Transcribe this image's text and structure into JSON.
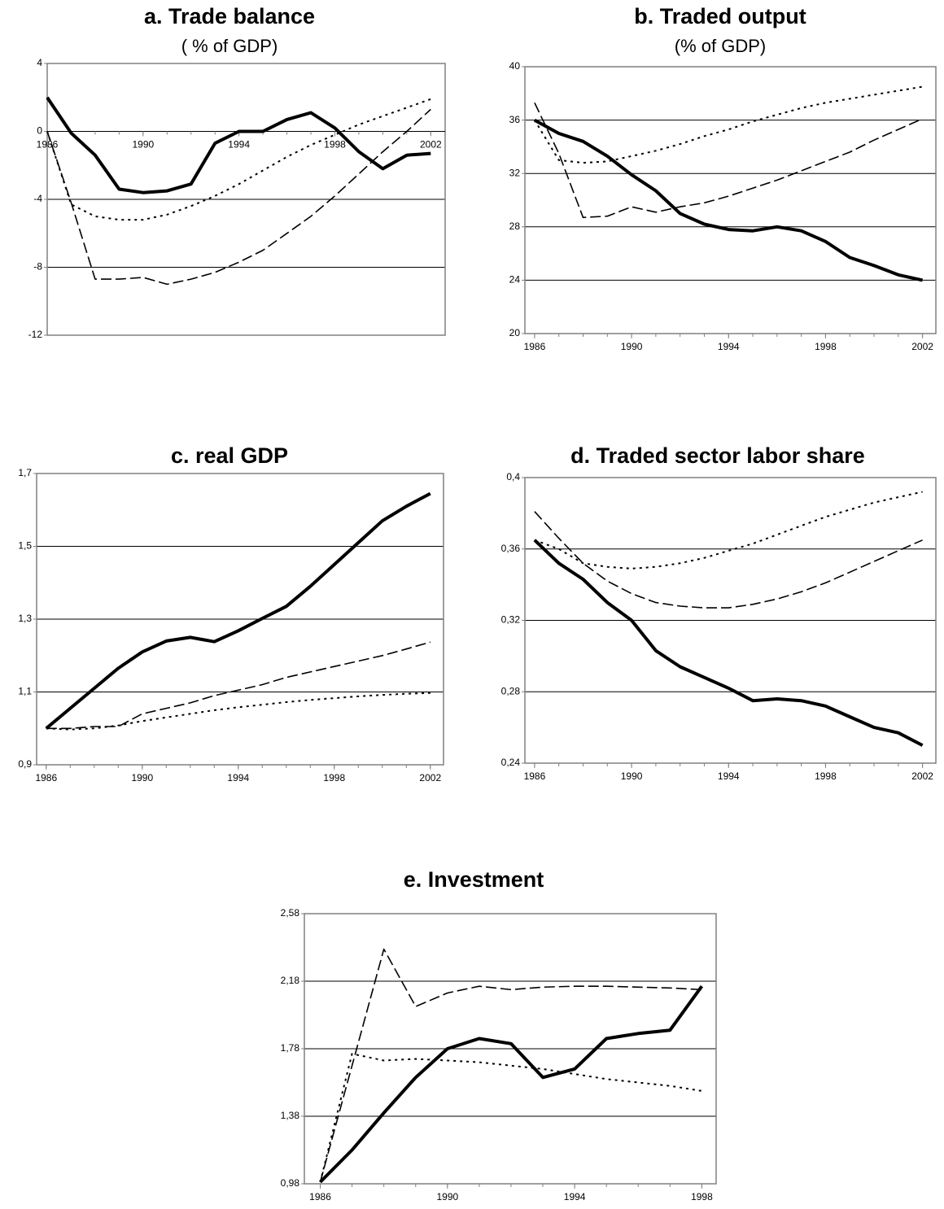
{
  "chart_data": [
    {
      "type": "line",
      "title": "a. Trade balance",
      "subtitle": "( % of GDP)",
      "x": [
        1986,
        1987,
        1988,
        1989,
        1990,
        1991,
        1992,
        1993,
        1994,
        1995,
        1996,
        1997,
        1998,
        1999,
        2000,
        2001,
        2002
      ],
      "xlim": [
        1986,
        2002.6
      ],
      "xticks": [
        1986,
        1990,
        1994,
        1998,
        2002
      ],
      "x_axis_crossing": 0,
      "ylim": [
        -12,
        4
      ],
      "yticks": [
        4,
        0,
        -4,
        -8,
        -12
      ],
      "grid": true,
      "series": [
        {
          "color": "#000000",
          "style": "solid",
          "values": [
            2,
            -0.1,
            -1.4,
            -3.4,
            -3.6,
            -3.5,
            -3.1,
            -0.7,
            0,
            0,
            0.7,
            1.1,
            0.2,
            -1.2,
            -2.2,
            -1.4,
            -1.3
          ]
        },
        {
          "color": "#000000",
          "style": "dashed",
          "values": [
            0,
            -4.2,
            -8.7,
            -8.7,
            -8.6,
            -9.0,
            -8.7,
            -8.3,
            -7.7,
            -7.0,
            -6.0,
            -5.0,
            -3.8,
            -2.5,
            -1.2,
            0,
            1.3
          ]
        },
        {
          "color": "#000000",
          "style": "dotted",
          "values": [
            0,
            -4.3,
            -5.0,
            -5.2,
            -5.2,
            -4.9,
            -4.4,
            -3.8,
            -3.1,
            -2.3,
            -1.5,
            -0.8,
            -0.2,
            0.4,
            0.9,
            1.4,
            1.9
          ]
        }
      ]
    },
    {
      "type": "line",
      "title": "b. Traded output",
      "subtitle": "(% of GDP)",
      "x": [
        1986,
        1987,
        1988,
        1989,
        1990,
        1991,
        1992,
        1993,
        1994,
        1995,
        1996,
        1997,
        1998,
        1999,
        2000,
        2001,
        2002
      ],
      "xlim": [
        1985.6,
        2002.55
      ],
      "xticks": [
        1986,
        1990,
        1994,
        1998,
        2002
      ],
      "ylim": [
        20,
        40
      ],
      "yticks": [
        40,
        36,
        32,
        28,
        24,
        20
      ],
      "grid": true,
      "series": [
        {
          "color": "#000000",
          "style": "solid",
          "values": [
            36,
            35,
            34.4,
            33.3,
            31.9,
            30.7,
            29.0,
            28.2,
            27.8,
            27.7,
            28.0,
            27.7,
            26.9,
            25.7,
            25.1,
            24.4,
            24.0
          ]
        },
        {
          "color": "#000000",
          "style": "dashed",
          "values": [
            37.3,
            33.5,
            28.7,
            28.8,
            29.5,
            29.1,
            29.5,
            29.8,
            30.3,
            30.9,
            31.5,
            32.2,
            32.9,
            33.6,
            34.5,
            35.3,
            36.1
          ]
        },
        {
          "color": "#000000",
          "style": "dotted",
          "values": [
            36,
            33,
            32.8,
            32.9,
            33.3,
            33.7,
            34.2,
            34.8,
            35.3,
            35.9,
            36.4,
            36.9,
            37.3,
            37.6,
            37.9,
            38.2,
            38.5
          ]
        }
      ]
    },
    {
      "type": "line",
      "title": "c. real GDP",
      "x": [
        1986,
        1987,
        1988,
        1989,
        1990,
        1991,
        1992,
        1993,
        1994,
        1995,
        1996,
        1997,
        1998,
        1999,
        2000,
        2001,
        2002
      ],
      "xlim": [
        1985.6,
        2002.55
      ],
      "xticks": [
        1986,
        1990,
        1994,
        1998,
        2002
      ],
      "ylim": [
        0.9,
        1.7
      ],
      "yticks": [
        {
          "value": 1.7,
          "label": "1,7"
        },
        {
          "value": 1.5,
          "label": "1,5"
        },
        {
          "value": 1.3,
          "label": "1,3"
        },
        {
          "value": 1.1,
          "label": "1,1"
        },
        {
          "value": 0.9,
          "label": "0,9"
        }
      ],
      "grid": true,
      "series": [
        {
          "color": "#000000",
          "style": "solid",
          "values": [
            1.0,
            1.055,
            1.11,
            1.165,
            1.21,
            1.24,
            1.25,
            1.238,
            1.268,
            1.302,
            1.335,
            1.39,
            1.45,
            1.51,
            1.57,
            1.61,
            1.645
          ]
        },
        {
          "color": "#000000",
          "style": "dashed",
          "values": [
            1.0,
            1.0,
            1.005,
            1.005,
            1.04,
            1.055,
            1.07,
            1.09,
            1.105,
            1.12,
            1.14,
            1.155,
            1.17,
            1.185,
            1.2,
            1.218,
            1.237
          ]
        },
        {
          "color": "#000000",
          "style": "dotted",
          "values": [
            1.0,
            0.997,
            1.0,
            1.008,
            1.02,
            1.03,
            1.04,
            1.05,
            1.058,
            1.065,
            1.072,
            1.078,
            1.083,
            1.088,
            1.092,
            1.095,
            1.097
          ]
        }
      ]
    },
    {
      "type": "line",
      "title": "d. Traded sector labor share",
      "x": [
        1986,
        1987,
        1988,
        1989,
        1990,
        1991,
        1992,
        1993,
        1994,
        1995,
        1996,
        1997,
        1998,
        1999,
        2000,
        2001,
        2002
      ],
      "xlim": [
        1985.6,
        2002.55
      ],
      "xticks": [
        1986,
        1990,
        1994,
        1998,
        2002
      ],
      "ylim": [
        0.24,
        0.4
      ],
      "yticks": [
        {
          "value": 0.4,
          "label": "0,4"
        },
        {
          "value": 0.36,
          "label": "0,36"
        },
        {
          "value": 0.32,
          "label": "0,32"
        },
        {
          "value": 0.28,
          "label": "0,28"
        },
        {
          "value": 0.24,
          "label": "0,24"
        }
      ],
      "grid": true,
      "series": [
        {
          "color": "#000000",
          "style": "solid",
          "values": [
            0.365,
            0.352,
            0.343,
            0.33,
            0.32,
            0.303,
            0.294,
            0.288,
            0.282,
            0.275,
            0.276,
            0.275,
            0.272,
            0.266,
            0.26,
            0.257,
            0.25
          ]
        },
        {
          "color": "#000000",
          "style": "dashed",
          "values": [
            0.381,
            0.366,
            0.352,
            0.342,
            0.335,
            0.33,
            0.328,
            0.327,
            0.327,
            0.329,
            0.332,
            0.336,
            0.341,
            0.347,
            0.353,
            0.359,
            0.365
          ]
        },
        {
          "color": "#000000",
          "style": "dotted",
          "values": [
            0.365,
            0.36,
            0.352,
            0.35,
            0.349,
            0.35,
            0.352,
            0.355,
            0.359,
            0.363,
            0.368,
            0.373,
            0.378,
            0.382,
            0.386,
            0.389,
            0.392
          ]
        }
      ]
    },
    {
      "type": "line",
      "title": "e. Investment",
      "x": [
        1986,
        1987,
        1988,
        1989,
        1990,
        1991,
        1992,
        1993,
        1994,
        1995,
        1996,
        1997,
        1998
      ],
      "xlim": [
        1985.5,
        1998.45
      ],
      "xticks": [
        1986,
        1990,
        1994,
        1998
      ],
      "ylim": [
        0.98,
        2.58
      ],
      "yticks": [
        {
          "value": 2.58,
          "label": "2,58"
        },
        {
          "value": 2.18,
          "label": "2,18"
        },
        {
          "value": 1.78,
          "label": "1,78"
        },
        {
          "value": 1.38,
          "label": "1,38"
        },
        {
          "value": 0.98,
          "label": "0,98"
        }
      ],
      "grid": true,
      "series": [
        {
          "color": "#000000",
          "style": "solid",
          "values": [
            0.99,
            1.18,
            1.4,
            1.61,
            1.78,
            1.84,
            1.81,
            1.61,
            1.66,
            1.84,
            1.87,
            1.89,
            2.15
          ]
        },
        {
          "color": "#000000",
          "style": "dashed",
          "values": [
            0.99,
            1.68,
            2.37,
            2.03,
            2.11,
            2.15,
            2.13,
            2.145,
            2.15,
            2.15,
            2.145,
            2.14,
            2.13
          ]
        },
        {
          "color": "#000000",
          "style": "dotted",
          "values": [
            0.99,
            1.75,
            1.71,
            1.72,
            1.71,
            1.7,
            1.68,
            1.66,
            1.63,
            1.6,
            1.58,
            1.56,
            1.53
          ]
        }
      ]
    }
  ]
}
